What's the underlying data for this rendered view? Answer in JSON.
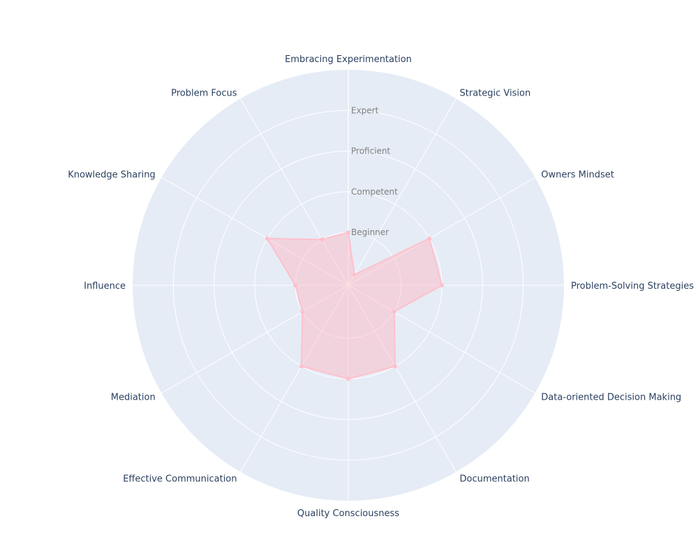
{
  "colors": {
    "polar_bg": "#e5ecf6",
    "grid": "#ffffff",
    "series_line": "#ffc0cb",
    "series_fill": "rgba(255,182,193,0.45)",
    "axis_text": "#2a3f5f",
    "tick_text": "#7f7f7f"
  },
  "chart_data": {
    "type": "radar",
    "categories": [
      "Embracing Experimentation",
      "Strategic Vision",
      "Owners Mindset",
      "Problem-Solving Strategies",
      "Data-oriented Decision Making",
      "Documentation",
      "Quality Consciousness",
      "Effective Communication",
      "Mediation",
      "Influence",
      "Knowledge Sharing",
      "Problem Focus"
    ],
    "radial_ticks": [
      {
        "value": 1.3,
        "label": "Beginner"
      },
      {
        "value": 2.3,
        "label": "Competent"
      },
      {
        "value": 3.3,
        "label": "Proficient"
      },
      {
        "value": 4.3,
        "label": "Expert"
      }
    ],
    "radial_range": [
      0,
      5.3
    ],
    "series": [
      {
        "values": [
          1.3,
          0.3,
          2.3,
          2.3,
          1.3,
          2.3,
          2.3,
          2.3,
          1.3,
          1.3,
          2.3,
          1.3
        ]
      }
    ]
  }
}
